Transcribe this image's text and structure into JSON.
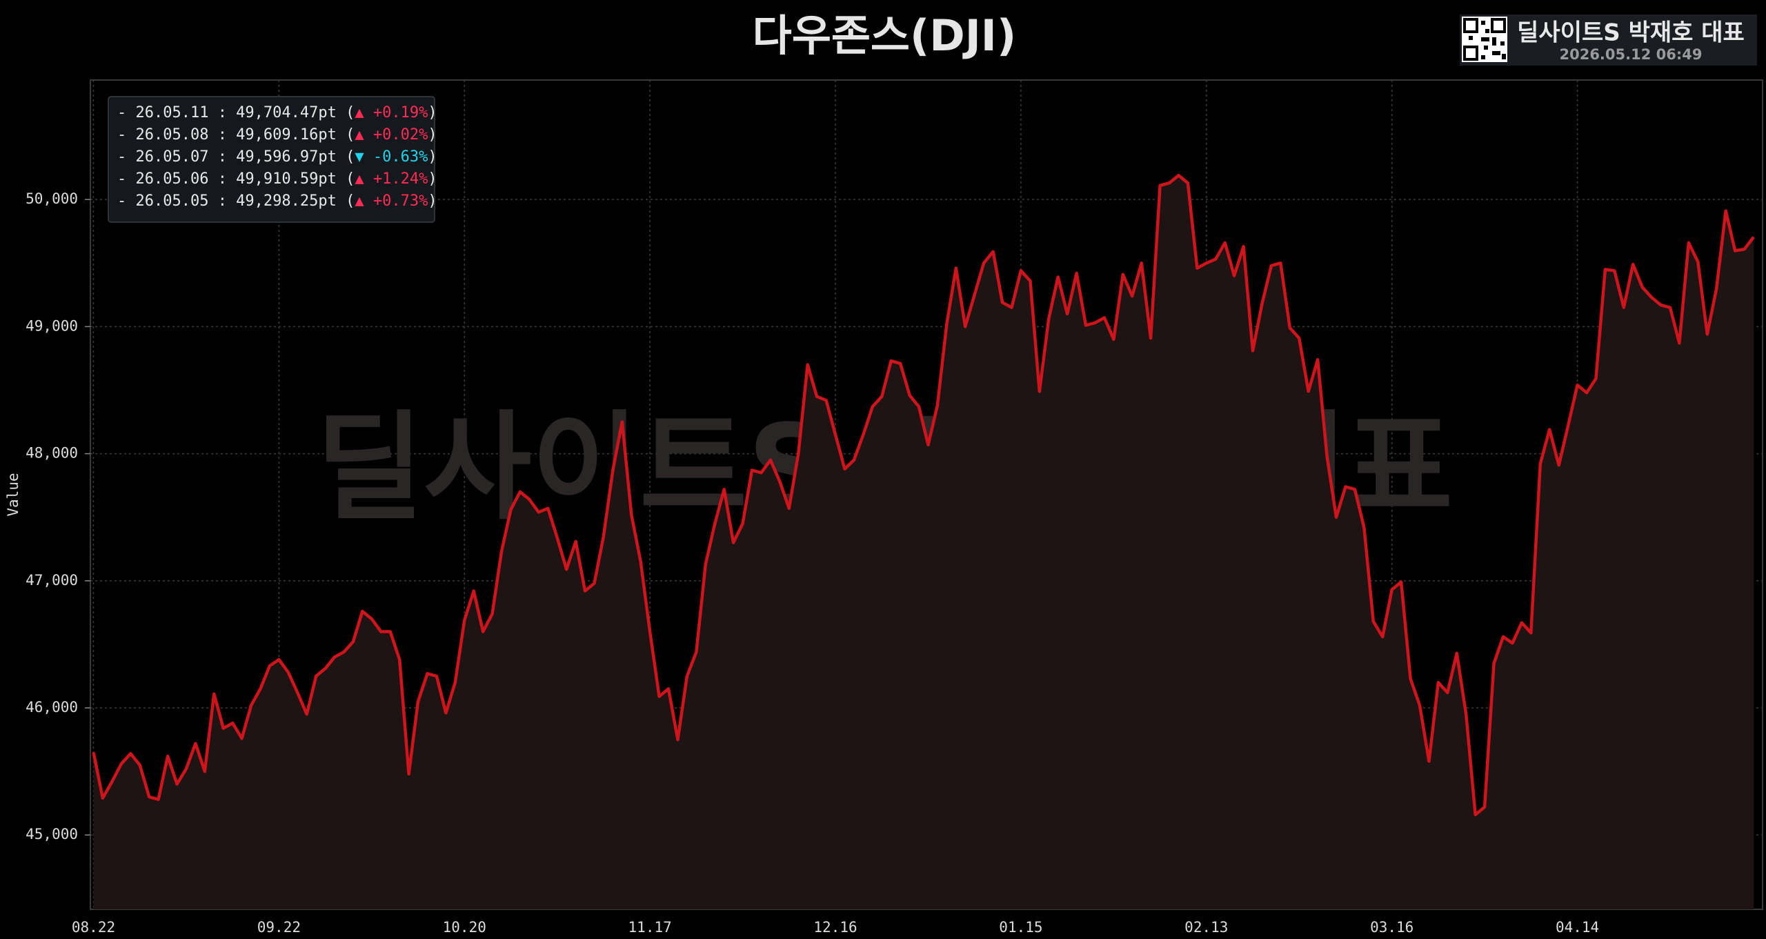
{
  "chart_data": {
    "type": "line",
    "title": "다우존스(DJI)",
    "y_label": "Value",
    "watermark": "딜사이트S 박재호 대표",
    "brand": {
      "name": "딜사이트S 박재호 대표",
      "timestamp": "2026.05.12 06:49"
    },
    "legend_lines": [
      {
        "label": "- 26.05.11 : 49,704.47pt (",
        "change": "▲ +0.19%",
        "close": ")",
        "color": "#ff2d55"
      },
      {
        "label": "- 26.05.08 : 49,609.16pt (",
        "change": "▲ +0.02%",
        "close": ")",
        "color": "#ff2d55"
      },
      {
        "label": "- 26.05.07 : 49,596.97pt (",
        "change": "▼ -0.63%",
        "close": ")",
        "color": "#22d3ee"
      },
      {
        "label": "- 26.05.06 : 49,910.59pt (",
        "change": "▲ +1.24%",
        "close": ")",
        "color": "#ff2d55"
      },
      {
        "label": "- 26.05.05 : 49,298.25pt (",
        "change": "▲ +0.73%",
        "close": ")",
        "color": "#ff2d55"
      }
    ],
    "categories": [
      "08.22",
      null,
      null,
      null,
      null,
      null,
      null,
      null,
      null,
      null,
      null,
      null,
      null,
      null,
      null,
      null,
      null,
      null,
      null,
      null,
      "09.22",
      null,
      null,
      null,
      null,
      null,
      null,
      null,
      null,
      null,
      null,
      null,
      null,
      null,
      null,
      null,
      null,
      null,
      null,
      null,
      "10.20",
      null,
      null,
      null,
      null,
      null,
      null,
      null,
      null,
      null,
      null,
      null,
      null,
      null,
      null,
      null,
      null,
      null,
      null,
      null,
      "11.17",
      null,
      null,
      null,
      null,
      null,
      null,
      null,
      null,
      null,
      null,
      null,
      null,
      null,
      null,
      null,
      null,
      null,
      null,
      null,
      "12.16",
      null,
      null,
      null,
      null,
      null,
      null,
      null,
      null,
      null,
      null,
      null,
      null,
      null,
      null,
      null,
      null,
      null,
      null,
      null,
      "01.15",
      null,
      null,
      null,
      null,
      null,
      null,
      null,
      null,
      null,
      null,
      null,
      null,
      null,
      null,
      null,
      null,
      null,
      null,
      null,
      "02.13",
      null,
      null,
      null,
      null,
      null,
      null,
      null,
      null,
      null,
      null,
      null,
      null,
      null,
      null,
      null,
      null,
      null,
      null,
      null,
      "03.16",
      null,
      null,
      null,
      null,
      null,
      null,
      null,
      null,
      null,
      null,
      null,
      null,
      null,
      null,
      null,
      null,
      null,
      null,
      null,
      "04.14",
      null,
      null,
      null,
      null,
      null,
      null,
      null,
      null,
      null,
      null,
      null,
      null,
      null,
      null,
      null,
      null,
      null,
      null,
      null
    ],
    "series": [
      {
        "color": "#d0141c",
        "fill": "#1e1413",
        "values": [
          45650,
          45290,
          45420,
          45560,
          45640,
          45550,
          45300,
          45280,
          45620,
          45400,
          45520,
          45720,
          45500,
          46110,
          45840,
          45880,
          45760,
          46020,
          46150,
          46330,
          46380,
          46280,
          46120,
          45950,
          46250,
          46310,
          46400,
          46440,
          46520,
          46760,
          46700,
          46600,
          46600,
          46380,
          45480,
          46050,
          46270,
          46250,
          45960,
          46200,
          46690,
          46920,
          46600,
          46740,
          47230,
          47560,
          47700,
          47640,
          47540,
          47570,
          47340,
          47090,
          47310,
          46920,
          46980,
          47350,
          47870,
          48250,
          47520,
          47150,
          46600,
          46090,
          46150,
          45750,
          46250,
          46440,
          47130,
          47450,
          47720,
          47300,
          47450,
          47870,
          47850,
          47950,
          47780,
          47570,
          48000,
          48700,
          48450,
          48420,
          48150,
          47880,
          47950,
          48150,
          48370,
          48450,
          48730,
          48710,
          48460,
          48370,
          48070,
          48380,
          49020,
          49460,
          49000,
          49250,
          49500,
          49590,
          49190,
          49150,
          49440,
          49360,
          48490,
          49060,
          49390,
          49100,
          49420,
          49010,
          49030,
          49070,
          48900,
          49410,
          49240,
          49500,
          48910,
          50110,
          50130,
          50190,
          50130,
          49460,
          49500,
          49530,
          49660,
          49400,
          49630,
          48810,
          49180,
          49480,
          49500,
          48990,
          48910,
          48490,
          48740,
          47980,
          47500,
          47740,
          47720,
          47420,
          46680,
          46560,
          46930,
          46990,
          46230,
          46020,
          45580,
          46200,
          46120,
          46430,
          45950,
          45160,
          45220,
          46350,
          46560,
          46510,
          46670,
          46590,
          47920,
          48190,
          47910,
          48220,
          48540,
          48480,
          48590,
          49450,
          49440,
          49150,
          49490,
          49310,
          49230,
          49170,
          49150,
          48870,
          49660,
          49510,
          48940,
          49298.25,
          49910.59,
          49596.97,
          49609.16,
          49704.47
        ]
      }
    ],
    "ylim": [
      44415,
      50940
    ],
    "yticks": [
      {
        "value": 45000,
        "label": "45,000"
      },
      {
        "value": 46000,
        "label": "46,000"
      },
      {
        "value": 47000,
        "label": "47,000"
      },
      {
        "value": 48000,
        "label": "48,000"
      },
      {
        "value": 49000,
        "label": "49,000"
      },
      {
        "value": 50000,
        "label": "50,000"
      }
    ],
    "grid": true
  }
}
